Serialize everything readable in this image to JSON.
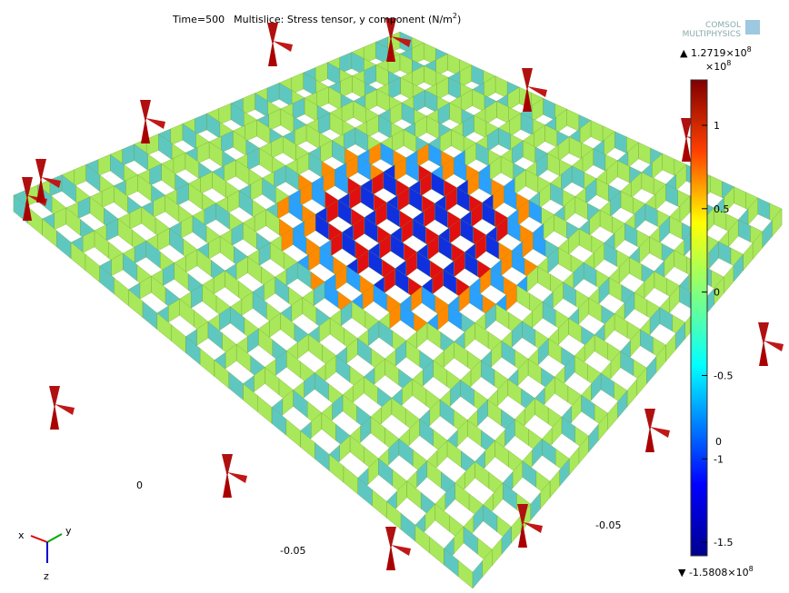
{
  "header": {
    "time": "Time=500",
    "title": "Multislice: Stress tensor, y component (N/m",
    "title_sup": "2",
    "title_end": ")"
  },
  "logo": [
    "COMSOL",
    "MULTIPHYSICS"
  ],
  "colorbar": {
    "max_label": "▲ 1.2719×10",
    "max_exp": "8",
    "multiplier": "×10",
    "multiplier_exp": "8",
    "range": [
      -1.5808,
      1.2719
    ],
    "ticks": [
      1,
      0.5,
      0,
      -0.5,
      -1,
      -1.5
    ],
    "extra_label": "0",
    "min_label": "▼ -1.5808×10",
    "min_exp": "8"
  },
  "axis_labels": [
    "0",
    "-0.05",
    "-0.05"
  ],
  "triad": [
    "x",
    "y",
    "z"
  ]
}
